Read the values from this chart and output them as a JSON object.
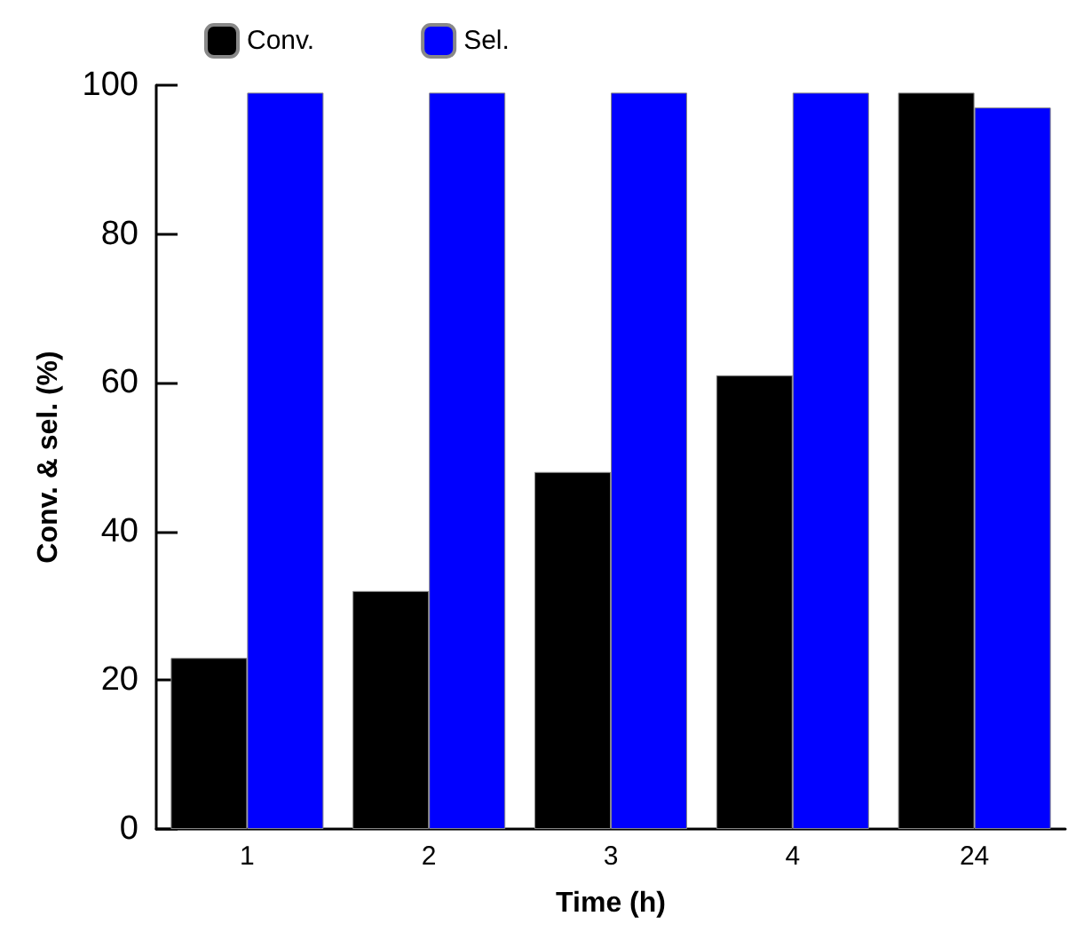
{
  "chart_data": {
    "type": "bar",
    "xlabel": "Time (h)",
    "ylabel": "Conv. & sel. (%)",
    "categories": [
      "1",
      "2",
      "3",
      "4",
      "24"
    ],
    "series": [
      {
        "name": "Conv.",
        "color": "#000000",
        "values": [
          23,
          32,
          48,
          61,
          99
        ]
      },
      {
        "name": "Sel.",
        "color": "#0000ff",
        "values": [
          99,
          99,
          99,
          99,
          97
        ]
      }
    ],
    "ylim": [
      0,
      100
    ],
    "yticks": [
      0,
      20,
      40,
      60,
      80,
      100
    ],
    "grid": false,
    "legend": "top left"
  }
}
